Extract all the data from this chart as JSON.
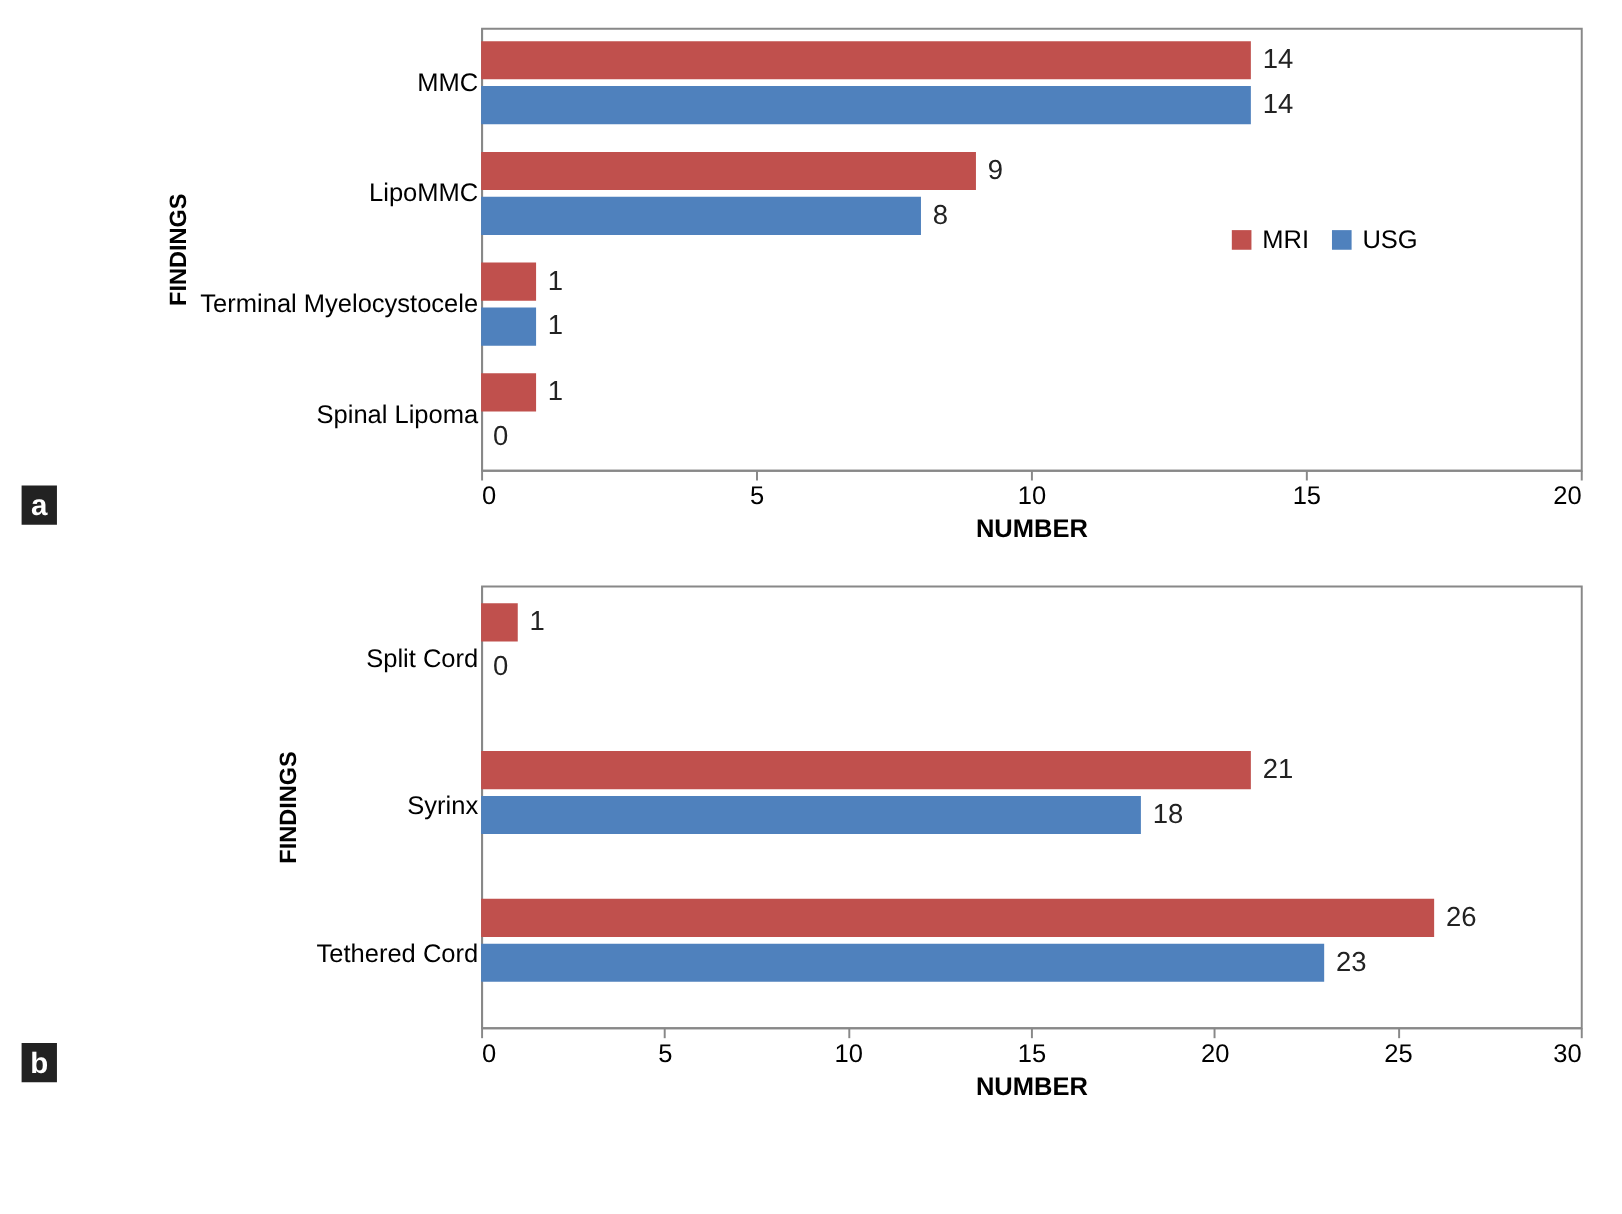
{
  "chart_data": [
    {
      "type": "bar",
      "orientation": "horizontal",
      "categories": [
        "MMC",
        "LipoMMC",
        "Terminal Myelocystocele",
        "Spinal Lipoma"
      ],
      "xlabel": "NUMBER",
      "ylabel": "FINDINGS",
      "xlim": [
        0,
        20
      ],
      "xticks": [
        0,
        5,
        10,
        15,
        20
      ],
      "legend": "right",
      "data_labels": true,
      "grid": false,
      "annotations": [
        "a"
      ],
      "series": [
        {
          "name": "MRI",
          "color": "#c0504d",
          "values": [
            14,
            9,
            1,
            1
          ]
        },
        {
          "name": "USG",
          "color": "#4f81bd",
          "values": [
            14,
            8,
            1,
            0
          ]
        }
      ]
    },
    {
      "type": "bar",
      "orientation": "horizontal",
      "categories": [
        "Split Cord",
        "Syrinx",
        "Tethered  Cord"
      ],
      "xlabel": "NUMBER",
      "ylabel": "FINDINGS",
      "xlim": [
        0,
        30
      ],
      "xticks": [
        0,
        5,
        10,
        15,
        20,
        25,
        30
      ],
      "legend": "top right",
      "data_labels": true,
      "grid": false,
      "annotations": [
        "b"
      ],
      "series": [
        {
          "name": "MRI",
          "color": "#c0504d",
          "values": [
            1,
            21,
            26
          ]
        },
        {
          "name": "USG",
          "color": "#4f81bd",
          "values": [
            0,
            18,
            23
          ]
        }
      ]
    }
  ]
}
